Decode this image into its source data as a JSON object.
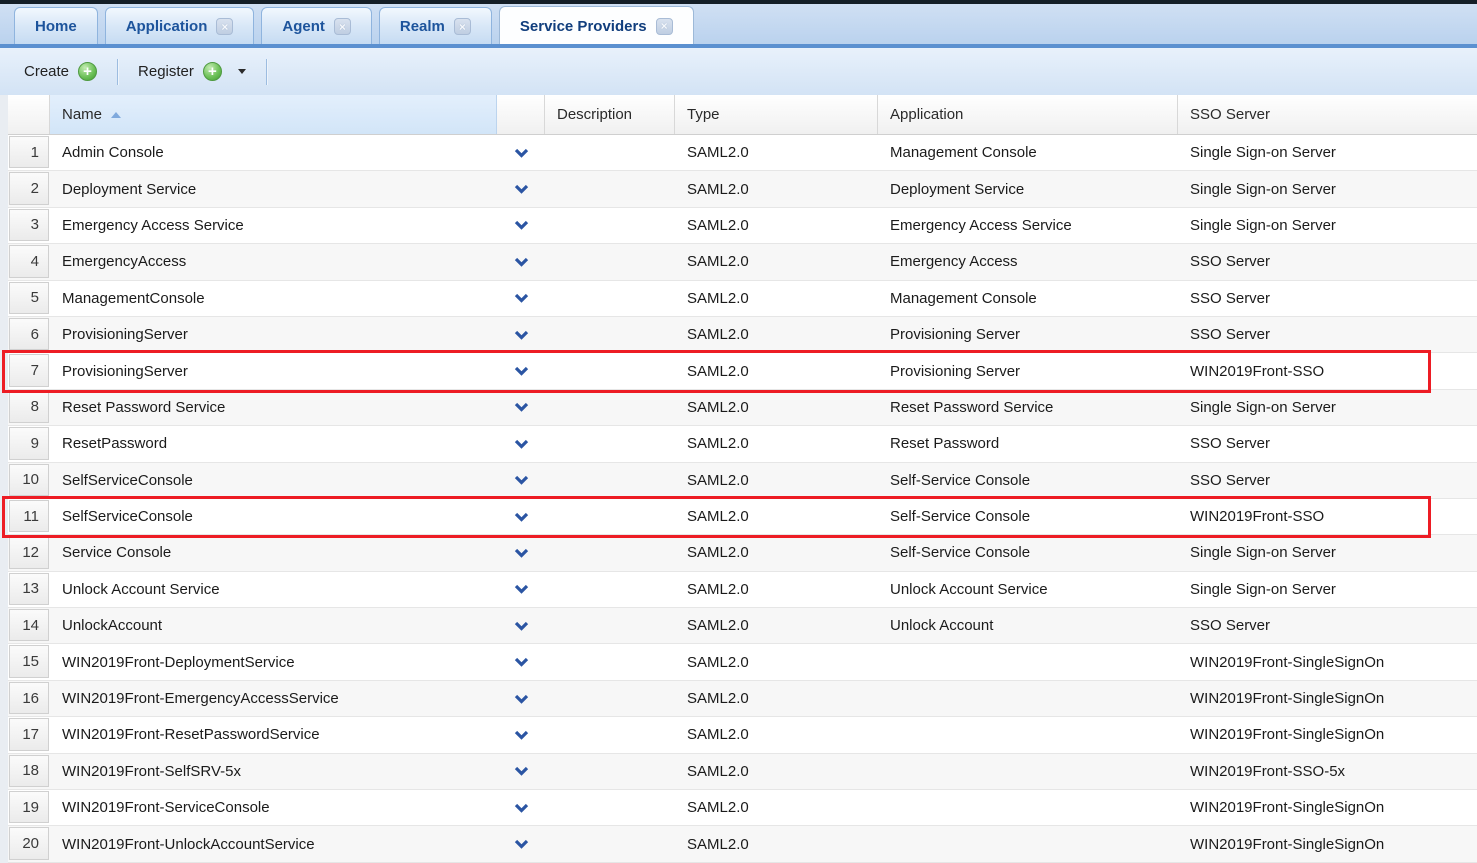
{
  "tabs": [
    {
      "label": "Home",
      "closable": false,
      "active": false
    },
    {
      "label": "Application",
      "closable": true,
      "active": false
    },
    {
      "label": "Agent",
      "closable": true,
      "active": false
    },
    {
      "label": "Realm",
      "closable": true,
      "active": false
    },
    {
      "label": "Service Providers",
      "closable": true,
      "active": true
    }
  ],
  "toolbar": {
    "create_label": "Create",
    "register_label": "Register"
  },
  "icons": {
    "add": "+",
    "close": "×",
    "dropdown_caret": "▾",
    "sort_ascending": "▲",
    "row_expand": "⌄"
  },
  "colors": {
    "tab_text": "#1d549c",
    "tab_bar": "#bad2ee",
    "toolbar_bg": "#d9e7f7",
    "accent_blue": "#5b90d0",
    "add_icon_green": "#4fא",
    "highlight_red": "#ed1c24",
    "sorted_column_bg": "#d9e8f9",
    "chevron_blue": "#2b55a3"
  },
  "table": {
    "headers": {
      "name": "Name",
      "description": "Description",
      "type": "Type",
      "application": "Application",
      "sso_server": "SSO Server"
    },
    "sort": {
      "column": "Name",
      "direction": "ascending"
    },
    "highlighted_rows": [
      7,
      11
    ],
    "rows": [
      {
        "num": "1",
        "name": "Admin Console",
        "description": "",
        "type": "SAML2.0",
        "application": "Management Console",
        "sso_server": "Single Sign-on Server",
        "highlighted": false
      },
      {
        "num": "2",
        "name": "Deployment Service",
        "description": "",
        "type": "SAML2.0",
        "application": "Deployment Service",
        "sso_server": "Single Sign-on Server",
        "highlighted": false
      },
      {
        "num": "3",
        "name": "Emergency Access Service",
        "description": "",
        "type": "SAML2.0",
        "application": "Emergency Access Service",
        "sso_server": "Single Sign-on Server",
        "highlighted": false
      },
      {
        "num": "4",
        "name": "EmergencyAccess",
        "description": "",
        "type": "SAML2.0",
        "application": "Emergency Access",
        "sso_server": "SSO Server",
        "highlighted": false
      },
      {
        "num": "5",
        "name": "ManagementConsole",
        "description": "",
        "type": "SAML2.0",
        "application": "Management Console",
        "sso_server": "SSO Server",
        "highlighted": false
      },
      {
        "num": "6",
        "name": "ProvisioningServer",
        "description": "",
        "type": "SAML2.0",
        "application": "Provisioning Server",
        "sso_server": "SSO Server",
        "highlighted": false
      },
      {
        "num": "7",
        "name": "ProvisioningServer",
        "description": "",
        "type": "SAML2.0",
        "application": "Provisioning Server",
        "sso_server": "WIN2019Front-SSO",
        "highlighted": true
      },
      {
        "num": "8",
        "name": "Reset Password Service",
        "description": "",
        "type": "SAML2.0",
        "application": "Reset Password Service",
        "sso_server": "Single Sign-on Server",
        "highlighted": false
      },
      {
        "num": "9",
        "name": "ResetPassword",
        "description": "",
        "type": "SAML2.0",
        "application": "Reset Password",
        "sso_server": "SSO Server",
        "highlighted": false
      },
      {
        "num": "10",
        "name": "SelfServiceConsole",
        "description": "",
        "type": "SAML2.0",
        "application": "Self-Service Console",
        "sso_server": "SSO Server",
        "highlighted": false
      },
      {
        "num": "11",
        "name": "SelfServiceConsole",
        "description": "",
        "type": "SAML2.0",
        "application": "Self-Service Console",
        "sso_server": "WIN2019Front-SSO",
        "highlighted": true
      },
      {
        "num": "12",
        "name": "Service Console",
        "description": "",
        "type": "SAML2.0",
        "application": "Self-Service Console",
        "sso_server": "Single Sign-on Server",
        "highlighted": false
      },
      {
        "num": "13",
        "name": "Unlock Account Service",
        "description": "",
        "type": "SAML2.0",
        "application": "Unlock Account Service",
        "sso_server": "Single Sign-on Server",
        "highlighted": false
      },
      {
        "num": "14",
        "name": "UnlockAccount",
        "description": "",
        "type": "SAML2.0",
        "application": "Unlock Account",
        "sso_server": "SSO Server",
        "highlighted": false
      },
      {
        "num": "15",
        "name": "WIN2019Front-DeploymentService",
        "description": "",
        "type": "SAML2.0",
        "application": "",
        "sso_server": "WIN2019Front-SingleSignOn",
        "highlighted": false
      },
      {
        "num": "16",
        "name": "WIN2019Front-EmergencyAccessService",
        "description": "",
        "type": "SAML2.0",
        "application": "",
        "sso_server": "WIN2019Front-SingleSignOn",
        "highlighted": false
      },
      {
        "num": "17",
        "name": "WIN2019Front-ResetPasswordService",
        "description": "",
        "type": "SAML2.0",
        "application": "",
        "sso_server": "WIN2019Front-SingleSignOn",
        "highlighted": false
      },
      {
        "num": "18",
        "name": "WIN2019Front-SelfSRV-5x",
        "description": "",
        "type": "SAML2.0",
        "application": "",
        "sso_server": "WIN2019Front-SSO-5x",
        "highlighted": false
      },
      {
        "num": "19",
        "name": "WIN2019Front-ServiceConsole",
        "description": "",
        "type": "SAML2.0",
        "application": "",
        "sso_server": "WIN2019Front-SingleSignOn",
        "highlighted": false
      },
      {
        "num": "20",
        "name": "WIN2019Front-UnlockAccountService",
        "description": "",
        "type": "SAML2.0",
        "application": "",
        "sso_server": "WIN2019Front-SingleSignOn",
        "highlighted": false
      }
    ]
  }
}
